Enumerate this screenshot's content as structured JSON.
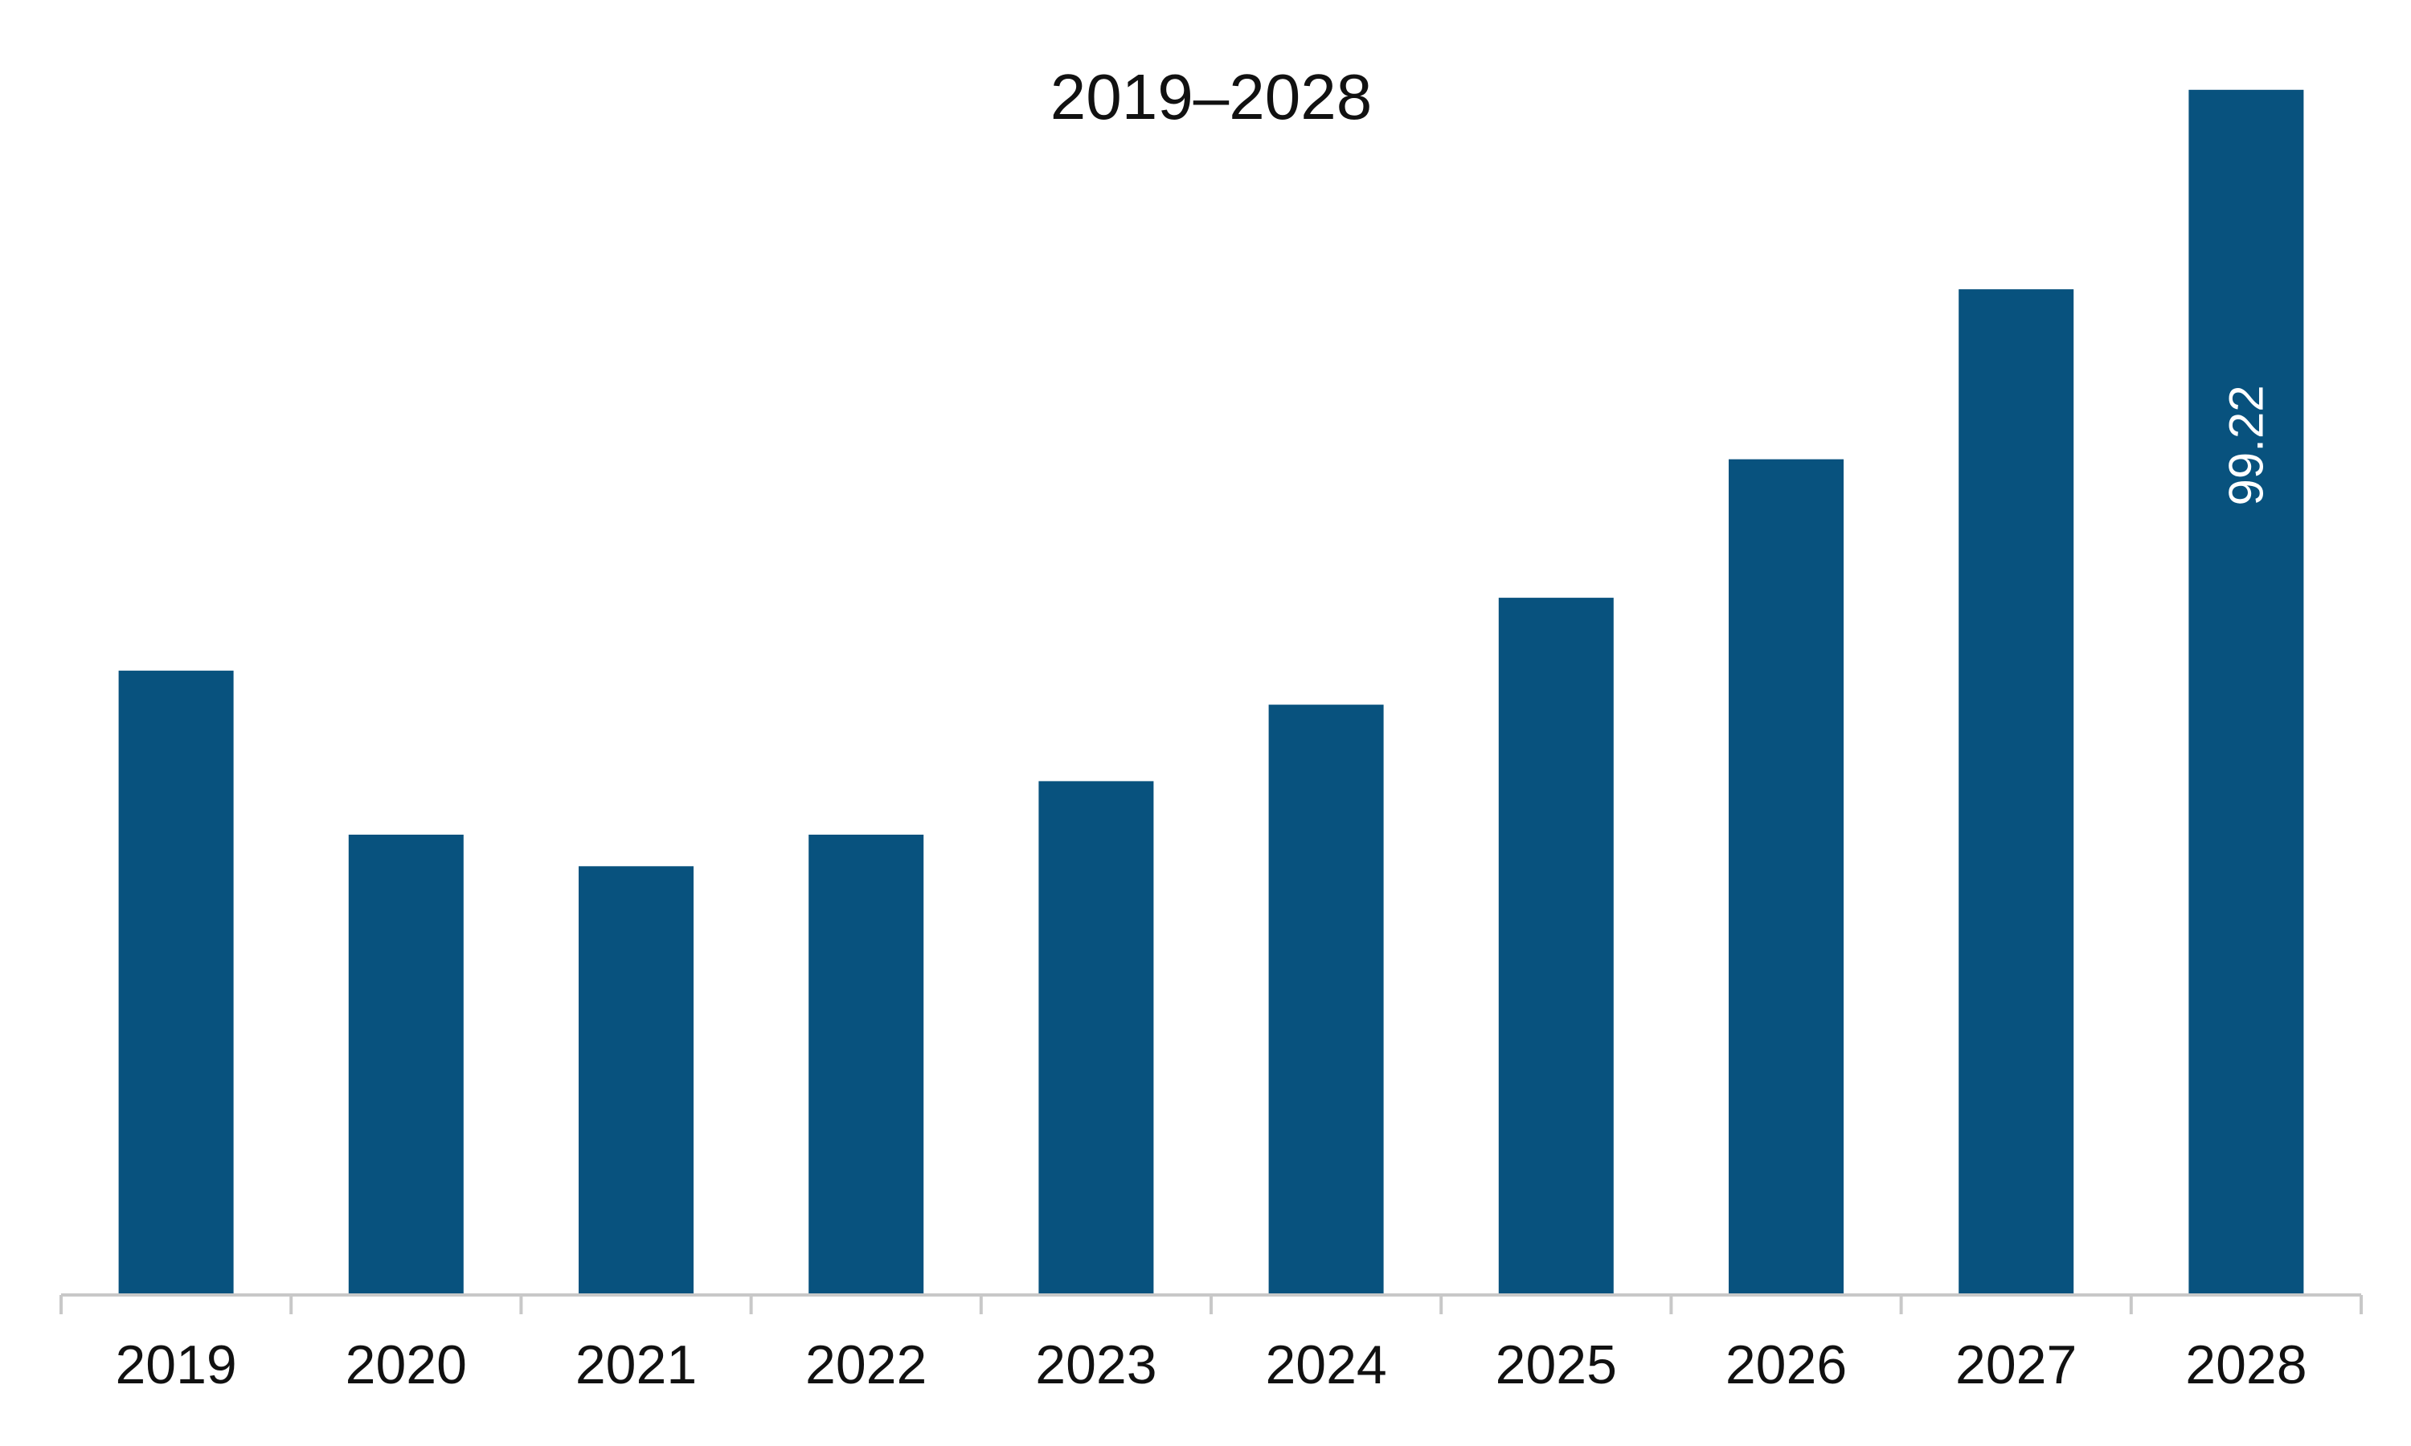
{
  "chart_data": {
    "type": "bar",
    "title": "2019–2028",
    "xlabel": "",
    "ylabel": "",
    "categories": [
      "2019",
      "2020",
      "2021",
      "2022",
      "2023",
      "2024",
      "2025",
      "2026",
      "2027",
      "2028"
    ],
    "series": [
      {
        "values": [
          51.4,
          37.9,
          35.3,
          37.9,
          42.3,
          48.6,
          57.4,
          68.8,
          82.8,
          99.22
        ],
        "color": "#08527E"
      }
    ],
    "data_labels": [
      {
        "category": "2028",
        "text": "99.22",
        "rotation": "vertical"
      }
    ],
    "ylim": [
      0,
      100
    ],
    "grid": false,
    "legend": "none",
    "colors": {
      "bar": "#08527E",
      "axis": "#C8C8C8",
      "text": "#111111",
      "data_label": "#ffffff"
    }
  }
}
